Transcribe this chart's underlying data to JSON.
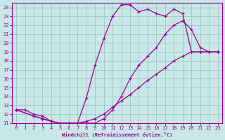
{
  "xlabel": "Windchill (Refroidissement éolien,°C)",
  "bg_color": "#c8e8e8",
  "grid_color": "#aaccaa",
  "line_color": "#990099",
  "xlim": [
    -0.5,
    23.5
  ],
  "ylim": [
    11,
    24.5
  ],
  "xticks": [
    0,
    1,
    2,
    3,
    4,
    5,
    6,
    7,
    8,
    9,
    10,
    11,
    12,
    13,
    14,
    15,
    16,
    17,
    18,
    19,
    20,
    21,
    22,
    23
  ],
  "yticks": [
    11,
    12,
    13,
    14,
    15,
    16,
    17,
    18,
    19,
    20,
    21,
    22,
    23,
    24
  ],
  "series": [
    {
      "x": [
        0,
        1,
        2,
        3,
        4,
        5,
        6,
        7,
        8,
        9,
        10,
        11,
        12,
        13,
        14,
        15,
        16,
        17,
        18,
        19,
        20,
        21,
        22,
        23
      ],
      "y": [
        12.5,
        12.5,
        12.0,
        11.8,
        11.2,
        11.0,
        11.0,
        11.0,
        13.8,
        17.5,
        20.5,
        23.0,
        24.3,
        24.3,
        23.5,
        23.8,
        23.3,
        23.0,
        23.8,
        23.3,
        19.0,
        19.0,
        19.0,
        19.0
      ]
    },
    {
      "x": [
        0,
        2,
        3,
        4,
        5,
        6,
        7,
        8,
        9,
        10,
        11,
        12,
        13,
        14,
        15,
        16,
        17,
        18,
        19,
        20,
        21,
        22,
        23
      ],
      "y": [
        12.5,
        11.8,
        11.5,
        11.2,
        11.0,
        11.0,
        11.0,
        11.0,
        11.0,
        11.5,
        12.5,
        14.0,
        16.0,
        17.5,
        18.5,
        19.5,
        21.0,
        22.0,
        22.5,
        21.5,
        19.5,
        19.0,
        19.0
      ]
    },
    {
      "x": [
        0,
        2,
        3,
        4,
        5,
        6,
        7,
        8,
        9,
        10,
        11,
        12,
        13,
        14,
        15,
        16,
        17,
        18,
        19,
        20,
        21,
        22,
        23
      ],
      "y": [
        12.5,
        11.8,
        11.5,
        11.2,
        11.0,
        11.0,
        11.0,
        11.2,
        11.5,
        12.0,
        12.8,
        13.5,
        14.2,
        15.0,
        15.8,
        16.5,
        17.2,
        18.0,
        18.5,
        19.0,
        19.0,
        19.0,
        19.0
      ]
    }
  ]
}
